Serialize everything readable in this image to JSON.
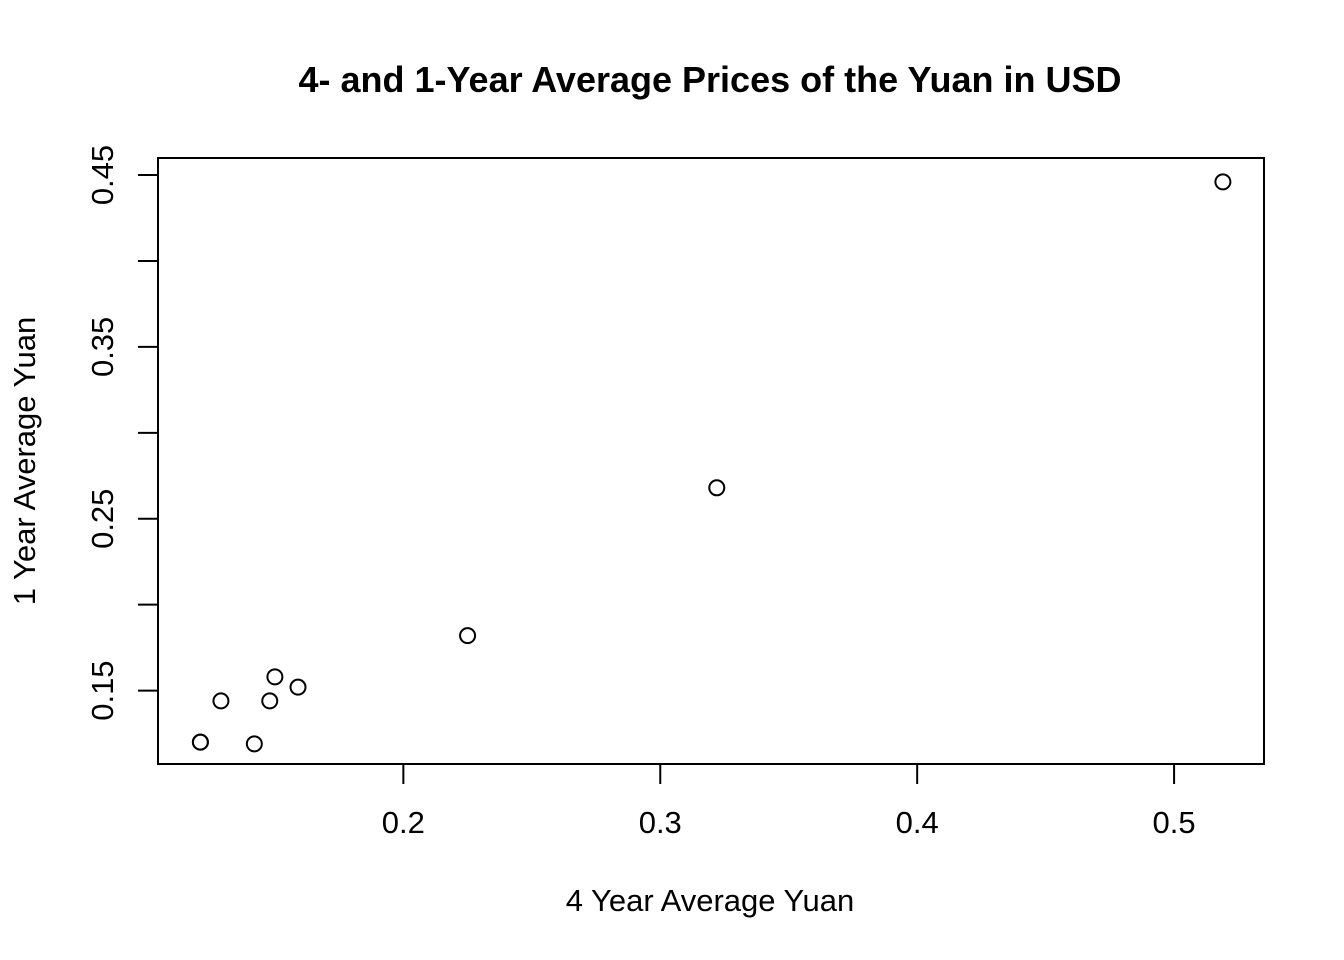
{
  "chart_data": {
    "type": "scatter",
    "title": "4- and 1-Year Average Prices of the Yuan in USD",
    "xlabel": "4 Year Average Yuan",
    "ylabel": "1 Year Average Yuan",
    "xlim": [
      0.1045,
      0.535
    ],
    "ylim": [
      0.1073,
      0.4599
    ],
    "x_ticks": [
      0.2,
      0.3,
      0.4,
      0.5
    ],
    "x_tick_labels": [
      "0.2",
      "0.3",
      "0.4",
      "0.5"
    ],
    "y_ticks": [
      0.15,
      0.2,
      0.25,
      0.3,
      0.35,
      0.4,
      0.45
    ],
    "y_tick_labels": [
      "0.15",
      "",
      "0.25",
      "",
      "0.35",
      "",
      "0.45"
    ],
    "grid": false,
    "legend": "none",
    "series": [
      {
        "x": [
          0.121,
          0.121,
          0.129,
          0.142,
          0.148,
          0.15,
          0.159,
          0.225,
          0.322,
          0.519
        ],
        "y": [
          0.12,
          0.12,
          0.144,
          0.119,
          0.144,
          0.158,
          0.152,
          0.182,
          0.268,
          0.446
        ]
      }
    ]
  }
}
